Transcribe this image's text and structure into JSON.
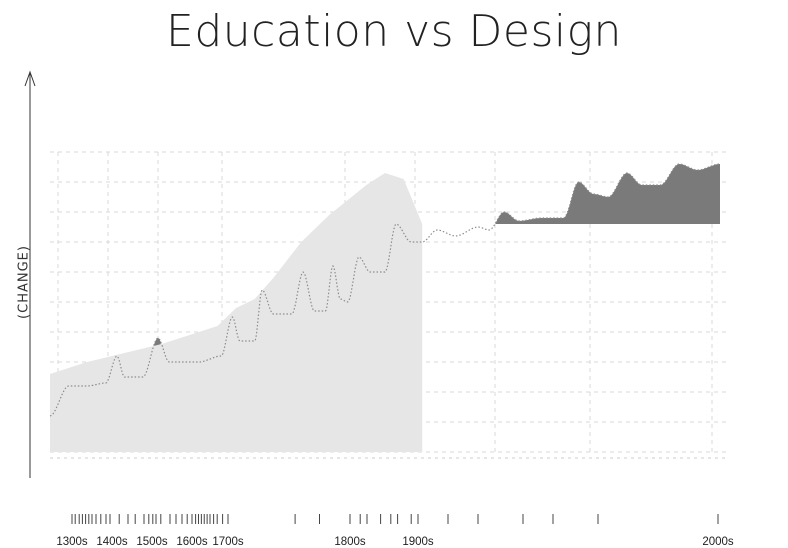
{
  "chart_data": {
    "type": "area",
    "title": "Education vs Design",
    "ylabel": "(CHANGE)",
    "xlabel": "",
    "grid": true,
    "legend": "none",
    "x_ticks": [
      "1300s",
      "1400s",
      "1500s",
      "1600s",
      "1700s",
      "1800s",
      "1900s",
      "2000s"
    ],
    "x_tick_years": [
      1300,
      1400,
      1500,
      1600,
      1700,
      1800,
      1900,
      2000
    ],
    "y_range": [
      0,
      10
    ],
    "series": [
      {
        "color": "#e6e6e6",
        "points": [
          [
            1300,
            2.6
          ],
          [
            1400,
            3.0
          ],
          [
            1500,
            3.3
          ],
          [
            1600,
            3.6
          ],
          [
            1700,
            4.0
          ],
          [
            1750,
            4.2
          ],
          [
            1800,
            4.8
          ],
          [
            1850,
            5.1
          ],
          [
            1900,
            5.8
          ],
          [
            1950,
            6.6
          ],
          [
            1975,
            7.0
          ],
          [
            2000,
            7.3
          ],
          [
            2050,
            7.9
          ],
          [
            2100,
            8.4
          ],
          [
            2150,
            8.9
          ],
          [
            2200,
            9.3
          ],
          [
            2250,
            9.1
          ],
          [
            2300,
            7.6
          ]
        ]
      },
      {
        "color": "#8c8c8c",
        "style": "dotted-line",
        "points": [
          [
            1300,
            1.2
          ],
          [
            1350,
            2.2
          ],
          [
            1400,
            2.2
          ],
          [
            1450,
            2.3
          ],
          [
            1480,
            3.2
          ],
          [
            1500,
            2.5
          ],
          [
            1550,
            2.5
          ],
          [
            1590,
            3.8
          ],
          [
            1620,
            3.0
          ],
          [
            1700,
            3.0
          ],
          [
            1760,
            3.2
          ],
          [
            1790,
            4.5
          ],
          [
            1810,
            3.7
          ],
          [
            1850,
            3.7
          ],
          [
            1870,
            5.4
          ],
          [
            1900,
            4.6
          ],
          [
            1950,
            4.6
          ],
          [
            1980,
            6.0
          ],
          [
            2010,
            4.7
          ],
          [
            2040,
            4.7
          ],
          [
            2060,
            6.2
          ],
          [
            2080,
            5.1
          ],
          [
            2100,
            5.0
          ],
          [
            2130,
            6.5
          ],
          [
            2160,
            6.0
          ],
          [
            2200,
            6.0
          ],
          [
            2230,
            7.6
          ],
          [
            2270,
            7.0
          ],
          [
            2300,
            7.0
          ],
          [
            2340,
            7.4
          ],
          [
            2390,
            7.2
          ],
          [
            2450,
            7.5
          ],
          [
            2480,
            7.4
          ],
          [
            2520,
            8.0
          ],
          [
            2560,
            7.7
          ],
          [
            2620,
            7.8
          ],
          [
            2680,
            7.8
          ],
          [
            2720,
            9.0
          ],
          [
            2760,
            8.6
          ],
          [
            2800,
            8.5
          ],
          [
            2850,
            9.3
          ],
          [
            2890,
            8.9
          ],
          [
            2940,
            8.9
          ],
          [
            2990,
            9.6
          ],
          [
            3040,
            9.4
          ],
          [
            3100,
            9.6
          ]
        ]
      }
    ],
    "rug_years": [
      1300,
      1308,
      1318,
      1326,
      1334,
      1342,
      1350,
      1360,
      1372,
      1385,
      1395,
      1418,
      1440,
      1458,
      1480,
      1492,
      1502,
      1510,
      1522,
      1545,
      1560,
      1575,
      1588,
      1600,
      1610,
      1618,
      1626,
      1634,
      1642,
      1650,
      1660,
      1670,
      1685,
      1700,
      1755,
      1775,
      1800,
      1815,
      1825,
      1845,
      1860,
      1870,
      1890,
      1900,
      1910,
      1920,
      1935,
      1945,
      1960,
      2000
    ]
  }
}
